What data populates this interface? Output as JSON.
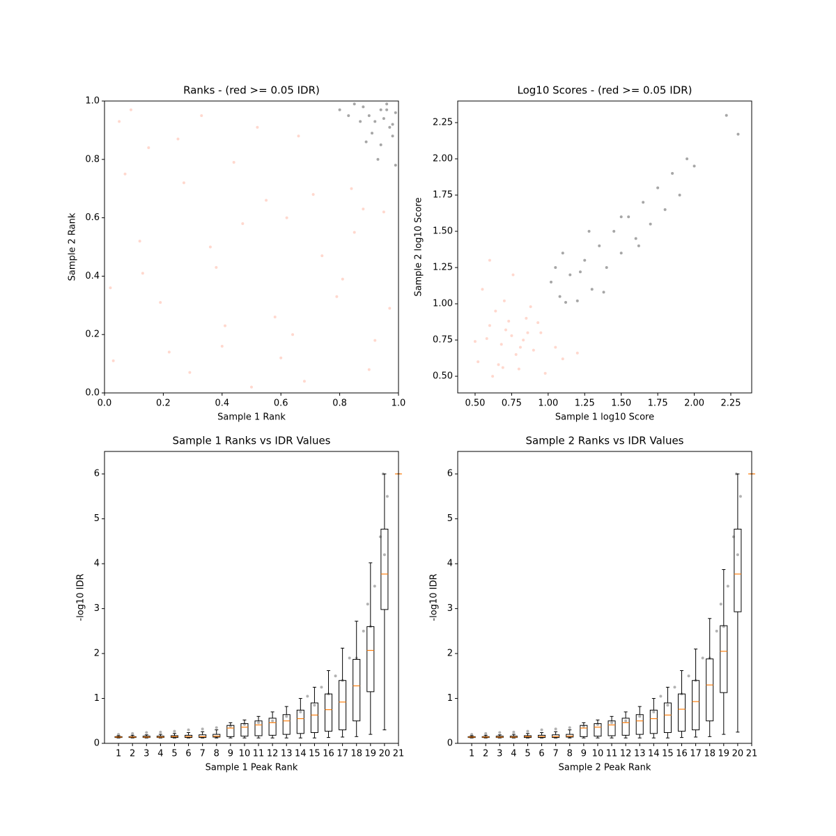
{
  "chart_data": [
    {
      "type": "scatter",
      "title": "Ranks - (red >= 0.05 IDR)",
      "xlabel": "Sample 1 Rank",
      "ylabel": "Sample 2 Rank",
      "xlim": [
        0,
        1
      ],
      "ylim": [
        0,
        1
      ],
      "xticks": [
        {
          "value": 0,
          "label": "0.0"
        },
        0.2,
        0.4,
        0.6,
        0.8,
        {
          "value": 1,
          "label": "1.0"
        }
      ],
      "yticks": [
        {
          "value": 0,
          "label": "0.0"
        },
        0.2,
        0.4,
        0.6,
        0.8,
        {
          "value": 1,
          "label": "1.0"
        }
      ],
      "alpha": 0.35,
      "series": [
        {
          "color": "#ff9073",
          "x": [
            0.03,
            0.12,
            0.25,
            0.41,
            0.55,
            0.68,
            0.81,
            0.92,
            0.07,
            0.19,
            0.33,
            0.47,
            0.6,
            0.74,
            0.88,
            0.97,
            0.15,
            0.29,
            0.38,
            0.52,
            0.64,
            0.71,
            0.85,
            0.02,
            0.44,
            0.58,
            0.22,
            0.95,
            0.09,
            0.36,
            0.66,
            0.79,
            0.5,
            0.27,
            0.13,
            0.9,
            0.62,
            0.05,
            0.4,
            0.84
          ],
          "values": [
            0.11,
            0.52,
            0.87,
            0.23,
            0.66,
            0.04,
            0.39,
            0.18,
            0.75,
            0.31,
            0.95,
            0.58,
            0.12,
            0.47,
            0.63,
            0.29,
            0.84,
            0.07,
            0.43,
            0.91,
            0.2,
            0.68,
            0.55,
            0.36,
            0.79,
            0.26,
            0.14,
            0.62,
            0.97,
            0.5,
            0.88,
            0.33,
            0.02,
            0.72,
            0.41,
            0.08,
            0.6,
            0.93,
            0.16,
            0.7
          ]
        },
        {
          "color": "#000000",
          "x": [
            0.96,
            0.92,
            0.88,
            0.98,
            0.94,
            0.9,
            0.85,
            0.99,
            0.97,
            0.93,
            0.8,
            0.95,
            0.91,
            0.87,
            0.99,
            0.96,
            0.83,
            0.98,
            0.94,
            0.89
          ],
          "values": [
            0.97,
            0.93,
            0.98,
            0.88,
            0.85,
            0.95,
            0.99,
            0.96,
            0.91,
            0.8,
            0.97,
            0.94,
            0.89,
            0.93,
            0.78,
            0.99,
            0.95,
            0.92,
            0.97,
            0.86
          ]
        }
      ]
    },
    {
      "type": "scatter",
      "title": "Log10 Scores - (red >= 0.05 IDR)",
      "xlabel": "Sample 1 log10 Score",
      "ylabel": "Sample 2 log10 Score",
      "xlim": [
        0.381,
        2.393
      ],
      "ylim": [
        0.385,
        2.399
      ],
      "xticks": [
        {
          "value": 0.5,
          "label": "0.50"
        },
        0.75,
        {
          "value": 1,
          "label": "1.00"
        },
        1.25,
        {
          "value": 1.5,
          "label": "1.50"
        },
        1.75,
        {
          "value": 2,
          "label": "2.00"
        },
        2.25
      ],
      "yticks": [
        {
          "value": 0.5,
          "label": "0.50"
        },
        0.75,
        {
          "value": 1,
          "label": "1.00"
        },
        1.25,
        {
          "value": 1.5,
          "label": "1.50"
        },
        1.75,
        {
          "value": 2,
          "label": "2.00"
        },
        2.25
      ],
      "alpha": 0.35,
      "series": [
        {
          "color": "#ff9073",
          "x": [
            0.52,
            0.6,
            0.68,
            0.75,
            0.8,
            0.85,
            0.9,
            0.7,
            0.62,
            0.78,
            0.95,
            1.05,
            0.55,
            0.73,
            0.83,
            0.66,
            0.88,
            1.1,
            0.58,
            0.76,
            0.98,
            0.71,
            0.64,
            0.81,
            1.2,
            0.5,
            0.93,
            0.69,
            0.86,
            0.6
          ],
          "values": [
            0.6,
            0.85,
            0.72,
            0.78,
            0.55,
            0.9,
            0.68,
            1.02,
            0.5,
            0.65,
            0.8,
            0.7,
            1.1,
            0.88,
            0.75,
            0.58,
            0.98,
            0.62,
            0.76,
            1.2,
            0.52,
            0.82,
            0.95,
            0.7,
            0.66,
            0.74,
            0.87,
            0.56,
            0.8,
            1.3
          ]
        },
        {
          "color": "#000000",
          "x": [
            1.02,
            1.08,
            1.15,
            1.2,
            1.25,
            1.3,
            1.35,
            1.4,
            1.45,
            1.5,
            1.55,
            1.6,
            1.65,
            1.7,
            1.75,
            1.8,
            1.85,
            1.9,
            1.95,
            2.0,
            2.22,
            2.3,
            1.1,
            1.28,
            1.38,
            1.12,
            1.05,
            1.5,
            1.62,
            1.22
          ],
          "values": [
            1.15,
            1.05,
            1.2,
            1.02,
            1.3,
            1.1,
            1.4,
            1.25,
            1.5,
            1.35,
            1.6,
            1.45,
            1.7,
            1.55,
            1.8,
            1.65,
            1.9,
            1.75,
            2.0,
            1.95,
            2.3,
            2.17,
            1.35,
            1.5,
            1.08,
            1.01,
            1.25,
            1.6,
            1.4,
            1.22
          ]
        }
      ]
    },
    {
      "type": "box",
      "title": "Sample 1 Ranks vs IDR Values",
      "xlabel": "Sample 1 Peak Rank",
      "ylabel": "-log10 IDR",
      "xlim": [
        0,
        21
      ],
      "ylim": [
        0,
        6.5
      ],
      "xticks": [
        1,
        2,
        3,
        4,
        5,
        6,
        7,
        8,
        9,
        10,
        11,
        12,
        13,
        14,
        15,
        16,
        17,
        18,
        19,
        20,
        21
      ],
      "yticks": [
        0,
        1,
        2,
        3,
        4,
        5,
        6
      ],
      "alpha": 0.3,
      "box_color": "#000000",
      "median_color": "#ff7f0e",
      "positions": [
        1,
        2,
        3,
        4,
        5,
        6,
        7,
        8,
        9,
        10,
        11,
        12,
        13,
        14,
        15,
        16,
        17,
        18,
        19,
        20,
        21
      ],
      "boxes": [
        [
          0.12,
          0.13,
          0.14,
          0.15,
          0.17
        ],
        [
          0.12,
          0.13,
          0.14,
          0.15,
          0.18
        ],
        [
          0.12,
          0.13,
          0.14,
          0.16,
          0.19
        ],
        [
          0.12,
          0.13,
          0.14,
          0.16,
          0.2
        ],
        [
          0.12,
          0.13,
          0.15,
          0.17,
          0.22
        ],
        [
          0.12,
          0.13,
          0.15,
          0.18,
          0.24
        ],
        [
          0.12,
          0.13,
          0.15,
          0.19,
          0.26
        ],
        [
          0.12,
          0.14,
          0.16,
          0.2,
          0.3
        ],
        [
          0.12,
          0.15,
          0.34,
          0.4,
          0.46
        ],
        [
          0.12,
          0.16,
          0.36,
          0.44,
          0.52
        ],
        [
          0.12,
          0.17,
          0.41,
          0.5,
          0.6
        ],
        [
          0.12,
          0.18,
          0.46,
          0.56,
          0.7
        ],
        [
          0.12,
          0.2,
          0.5,
          0.64,
          0.82
        ],
        [
          0.12,
          0.22,
          0.55,
          0.74,
          1.0
        ],
        [
          0.12,
          0.24,
          0.63,
          0.9,
          1.25
        ],
        [
          0.13,
          0.27,
          0.75,
          1.1,
          1.62
        ],
        [
          0.14,
          0.3,
          0.92,
          1.4,
          2.12
        ],
        [
          0.15,
          0.5,
          1.28,
          1.87,
          2.72
        ],
        [
          0.2,
          1.15,
          2.07,
          2.6,
          4.02
        ],
        [
          0.3,
          2.98,
          3.77,
          4.77,
          6.0
        ],
        [
          6,
          6,
          6,
          6,
          6
        ]
      ],
      "points": {
        "color": "#000000",
        "x": [
          1,
          2,
          3,
          4,
          5,
          6,
          7,
          8,
          9,
          10,
          11,
          12,
          13,
          14,
          15,
          16,
          17,
          18,
          19,
          20,
          14.5,
          16.5,
          17.5,
          18.5,
          19.3,
          19.7,
          20.2,
          15.5,
          18.8,
          19.9
        ],
        "values": [
          0.2,
          0.22,
          0.24,
          0.25,
          0.27,
          0.3,
          0.32,
          0.35,
          0.38,
          0.42,
          0.46,
          0.5,
          0.6,
          0.7,
          0.85,
          1.1,
          1.4,
          1.9,
          2.6,
          4.2,
          1.05,
          1.5,
          1.9,
          2.5,
          3.5,
          4.6,
          5.5,
          1.25,
          3.1,
          6.0
        ]
      }
    },
    {
      "type": "box",
      "title": "Sample 2 Ranks vs IDR Values",
      "xlabel": "Sample 2 Peak Rank",
      "ylabel": "-log10 IDR",
      "xlim": [
        0,
        21
      ],
      "ylim": [
        0,
        6.5
      ],
      "xticks": [
        1,
        2,
        3,
        4,
        5,
        6,
        7,
        8,
        9,
        10,
        11,
        12,
        13,
        14,
        15,
        16,
        17,
        18,
        19,
        20,
        21
      ],
      "yticks": [
        0,
        1,
        2,
        3,
        4,
        5,
        6
      ],
      "alpha": 0.3,
      "box_color": "#000000",
      "median_color": "#ff7f0e",
      "positions": [
        1,
        2,
        3,
        4,
        5,
        6,
        7,
        8,
        9,
        10,
        11,
        12,
        13,
        14,
        15,
        16,
        17,
        18,
        19,
        20,
        21
      ],
      "boxes": [
        [
          0.12,
          0.13,
          0.14,
          0.15,
          0.17
        ],
        [
          0.12,
          0.13,
          0.14,
          0.15,
          0.18
        ],
        [
          0.12,
          0.13,
          0.14,
          0.16,
          0.19
        ],
        [
          0.12,
          0.13,
          0.14,
          0.16,
          0.2
        ],
        [
          0.12,
          0.13,
          0.15,
          0.17,
          0.22
        ],
        [
          0.12,
          0.13,
          0.15,
          0.18,
          0.24
        ],
        [
          0.12,
          0.13,
          0.15,
          0.19,
          0.26
        ],
        [
          0.12,
          0.14,
          0.16,
          0.2,
          0.3
        ],
        [
          0.12,
          0.15,
          0.34,
          0.4,
          0.46
        ],
        [
          0.12,
          0.16,
          0.36,
          0.44,
          0.52
        ],
        [
          0.12,
          0.17,
          0.41,
          0.5,
          0.6
        ],
        [
          0.12,
          0.18,
          0.46,
          0.56,
          0.7
        ],
        [
          0.12,
          0.2,
          0.5,
          0.64,
          0.82
        ],
        [
          0.12,
          0.22,
          0.55,
          0.74,
          1.0
        ],
        [
          0.12,
          0.24,
          0.63,
          0.9,
          1.25
        ],
        [
          0.13,
          0.27,
          0.76,
          1.1,
          1.62
        ],
        [
          0.14,
          0.3,
          0.93,
          1.4,
          2.1
        ],
        [
          0.15,
          0.5,
          1.3,
          1.88,
          2.78
        ],
        [
          0.2,
          1.13,
          2.05,
          2.62,
          3.87
        ],
        [
          0.25,
          2.93,
          3.77,
          4.77,
          6.0
        ],
        [
          6,
          6,
          6,
          6,
          6
        ]
      ],
      "points": {
        "color": "#000000",
        "x": [
          1,
          2,
          3,
          4,
          5,
          6,
          7,
          8,
          9,
          10,
          11,
          12,
          13,
          14,
          15,
          16,
          17,
          18,
          19,
          20,
          14.5,
          16.5,
          17.5,
          18.5,
          19.3,
          19.7,
          20.2,
          15.5,
          18.8,
          19.9
        ],
        "values": [
          0.2,
          0.22,
          0.24,
          0.25,
          0.27,
          0.3,
          0.32,
          0.35,
          0.38,
          0.42,
          0.46,
          0.5,
          0.6,
          0.7,
          0.85,
          1.1,
          1.4,
          1.9,
          2.6,
          4.2,
          1.05,
          1.5,
          1.9,
          2.5,
          3.5,
          4.6,
          5.5,
          1.25,
          3.1,
          6.0
        ]
      }
    }
  ]
}
